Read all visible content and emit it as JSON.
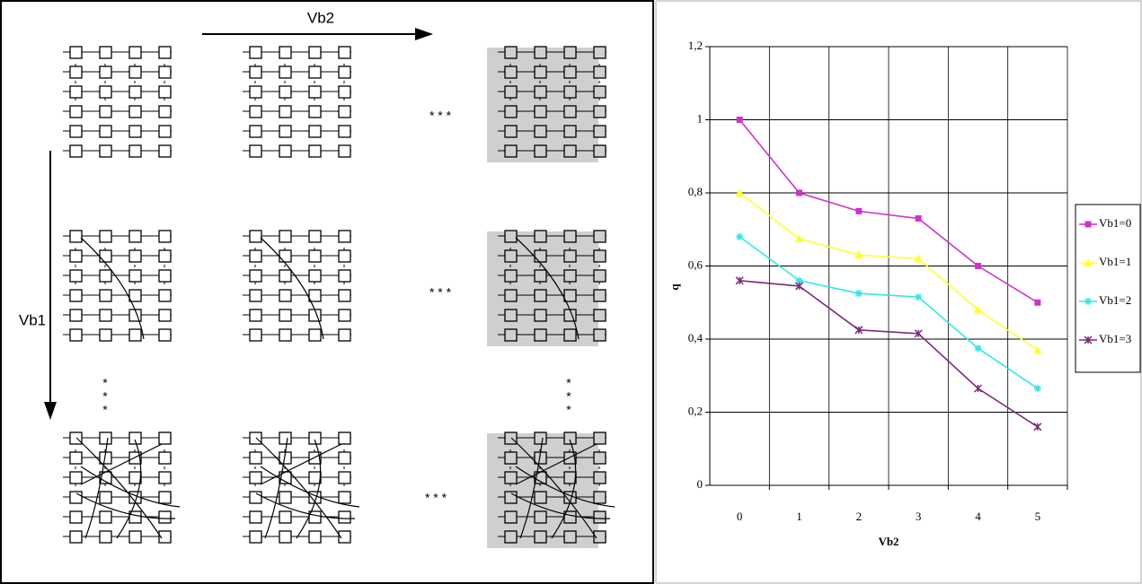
{
  "diagram": {
    "top_label": "Vb2",
    "side_label": "Vb1",
    "ellipsis": "* * *",
    "ellipsis_vertical": "*"
  },
  "chart_data": {
    "type": "line",
    "x_label": "Vb2",
    "y_label": "q",
    "categories": [
      "0",
      "1",
      "2",
      "3",
      "4",
      "5"
    ],
    "ylim": [
      0,
      1.2
    ],
    "yticks": [
      0,
      {
        "value": 0.2,
        "label": "0,2"
      },
      {
        "value": 0.4,
        "label": "0,4"
      },
      {
        "value": 0.6,
        "label": "0,6"
      },
      {
        "value": 0.8,
        "label": "0,8"
      },
      1,
      {
        "value": 1.2,
        "label": "1,2"
      }
    ],
    "grid": true,
    "legend": "right",
    "series": [
      {
        "name": "Vb1=0",
        "color": "#cc33cc",
        "marker": "square",
        "values": [
          1,
          0.8,
          0.75,
          0.73,
          0.6,
          0.5
        ]
      },
      {
        "name": "Vb1=1",
        "color": "#ffff33",
        "marker": "triangle",
        "values": [
          0.8,
          0.675,
          0.63,
          0.62,
          0.48,
          0.37
        ]
      },
      {
        "name": "Vb1=2",
        "color": "#33e6e6",
        "marker": "star",
        "values": [
          0.68,
          0.56,
          0.525,
          0.515,
          0.375,
          0.265
        ]
      },
      {
        "name": "Vb1=3",
        "color": "#7a2a7a",
        "marker": "cross",
        "values": [
          0.56,
          0.545,
          0.425,
          0.415,
          0.265,
          0.16
        ]
      }
    ]
  }
}
